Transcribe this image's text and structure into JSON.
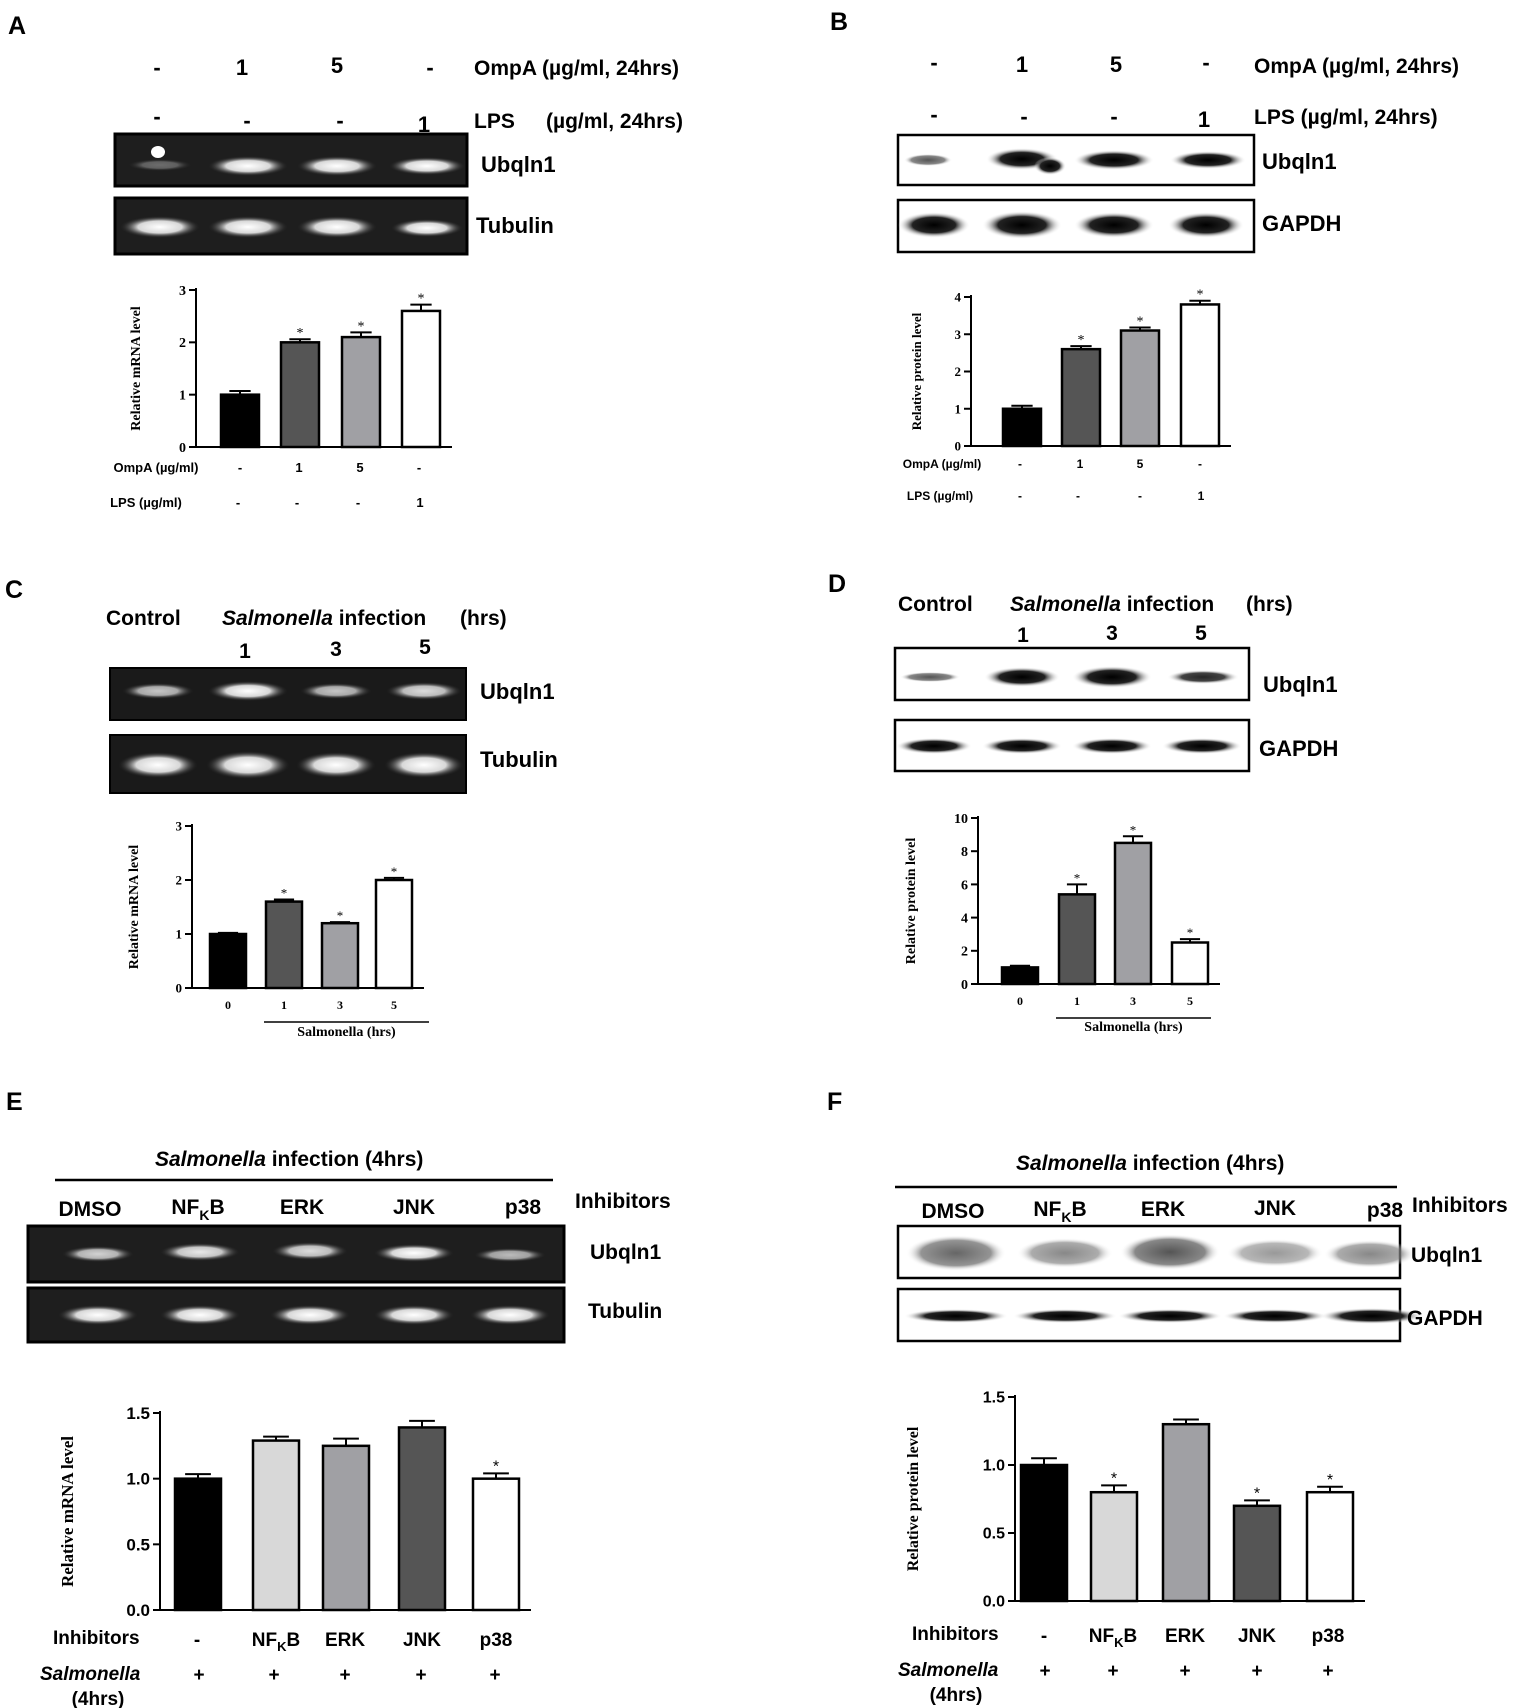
{
  "panels": {
    "A": {
      "letter": "A",
      "row1": [
        "-",
        "1",
        "5",
        "-"
      ],
      "row1_label": "OmpA (µg/ml, 24hrs)",
      "row2": [
        "-",
        "-",
        "-",
        "1"
      ],
      "row2_label": "LPS",
      "row2_label_units": "(µg/ml, 24hrs)",
      "blot_labels": [
        "Ubqln1",
        "Tubulin"
      ],
      "axis_rows": [
        {
          "label": "OmpA (µg/ml)",
          "values": [
            "-",
            "1",
            "5",
            "-"
          ]
        },
        {
          "label": "LPS (µg/ml)",
          "values": [
            "-",
            "-",
            "-",
            "1"
          ]
        }
      ]
    },
    "B": {
      "letter": "B",
      "row1": [
        "-",
        "1",
        "5",
        "-"
      ],
      "row1_label": "OmpA (µg/ml, 24hrs)",
      "row2": [
        "-",
        "-",
        "-",
        "1"
      ],
      "row2_label": "LPS (µg/ml, 24hrs)",
      "blot_labels": [
        "Ubqln1",
        "GAPDH"
      ],
      "axis_rows": [
        {
          "label": "OmpA (µg/ml)",
          "values": [
            "-",
            "1",
            "5",
            "-"
          ]
        },
        {
          "label": "LPS (µg/ml)",
          "values": [
            "-",
            "-",
            "-",
            "1"
          ]
        }
      ]
    },
    "C": {
      "letter": "C",
      "control": "Control",
      "infection_italic": "Salmonella",
      "infection_rest": " infection",
      "hrs": "(hrs)",
      "times": [
        "1",
        "3",
        "5"
      ],
      "blot_labels": [
        "Ubqln1",
        "Tubulin"
      ]
    },
    "D": {
      "letter": "D",
      "control": "Control",
      "infection_italic": "Salmonella",
      "infection_rest": " infection",
      "hrs": "(hrs)",
      "times": [
        "1",
        "3",
        "5"
      ],
      "blot_labels": [
        "Ubqln1",
        "GAPDH"
      ]
    },
    "E": {
      "letter": "E",
      "header_italic": "Salmonella",
      "header_rest": " infection (4hrs)",
      "lanes": [
        "DMSO",
        "NF",
        "ERK",
        "JNK",
        "p38"
      ],
      "nfkb_sub": "K",
      "nfkb_tail": "B",
      "inhibitors": "Inhibitors",
      "blot_labels": [
        "Ubqln1",
        "Tubulin"
      ],
      "row_inhib_label": "Inhibitors",
      "row_inhib": [
        "-",
        "NF",
        "ERK",
        "JNK",
        "p38"
      ],
      "row_salm_label_1": "Salmonella",
      "row_salm_label_2": "(4hrs)",
      "row_salm": [
        "+",
        "+",
        "+",
        "+",
        "+"
      ]
    },
    "F": {
      "letter": "F",
      "header_italic": "Salmonella",
      "header_rest": " infection (4hrs)",
      "lanes": [
        "DMSO",
        "NF",
        "ERK",
        "JNK",
        "p38"
      ],
      "nfkb_sub": "K",
      "nfkb_tail": "B",
      "inhibitors": "Inhibitors",
      "blot_labels": [
        "Ubqln1",
        "GAPDH"
      ],
      "row_inhib_label": "Inhibitors",
      "row_inhib": [
        "-",
        "NF",
        "ERK",
        "JNK",
        "p38"
      ],
      "row_salm_label_1": "Salmonella",
      "row_salm_label_2": "(4hrs)",
      "row_salm": [
        "+",
        "+",
        "+",
        "+",
        "+"
      ]
    }
  },
  "chart_data": [
    {
      "id": "A",
      "type": "bar",
      "ylabel": "Relative mRNA level",
      "xlabel": "",
      "ylim": [
        0,
        3
      ],
      "yticks": [
        "0",
        "1",
        "2",
        "3"
      ],
      "categories": [
        "-/-",
        "1/-",
        "5/-",
        "-/1"
      ],
      "values": [
        1.0,
        2.0,
        2.1,
        2.6
      ],
      "errors": [
        0.07,
        0.06,
        0.09,
        0.12
      ],
      "significance": [
        "",
        "*",
        "*",
        "*"
      ],
      "colors": [
        "#000000",
        "#555555",
        "#a0a0a4",
        "#ffffff"
      ]
    },
    {
      "id": "B",
      "type": "bar",
      "ylabel": "Relative protein level",
      "xlabel": "",
      "ylim": [
        0,
        4
      ],
      "yticks": [
        "0",
        "1",
        "2",
        "3",
        "4"
      ],
      "categories": [
        "-/-",
        "1/-",
        "5/-",
        "-/1"
      ],
      "values": [
        1.0,
        2.6,
        3.1,
        3.8
      ],
      "errors": [
        0.08,
        0.08,
        0.08,
        0.1
      ],
      "significance": [
        "",
        "*",
        "*",
        "*"
      ],
      "colors": [
        "#000000",
        "#555555",
        "#a0a0a4",
        "#ffffff"
      ]
    },
    {
      "id": "C",
      "type": "bar",
      "ylabel": "Relative mRNA level",
      "xlabel": "Salmonella (hrs)",
      "ylim": [
        0,
        3
      ],
      "yticks": [
        "0",
        "1",
        "2",
        "3"
      ],
      "categories": [
        "0",
        "1",
        "3",
        "5"
      ],
      "values": [
        1.0,
        1.6,
        1.2,
        2.0
      ],
      "errors": [
        0.02,
        0.04,
        0.02,
        0.04
      ],
      "significance": [
        "",
        "*",
        "*",
        "*"
      ],
      "colors": [
        "#000000",
        "#555555",
        "#a0a0a4",
        "#ffffff"
      ]
    },
    {
      "id": "D",
      "type": "bar",
      "ylabel": "Relative protein level",
      "xlabel": "Salmonella (hrs)",
      "ylim": [
        0,
        10
      ],
      "yticks": [
        "0",
        "2",
        "4",
        "6",
        "8",
        "10"
      ],
      "categories": [
        "0",
        "1",
        "3",
        "5"
      ],
      "values": [
        1.0,
        5.4,
        8.5,
        2.5
      ],
      "errors": [
        0.1,
        0.6,
        0.4,
        0.2
      ],
      "significance": [
        "",
        "*",
        "*",
        "*"
      ],
      "colors": [
        "#000000",
        "#555555",
        "#a0a0a4",
        "#ffffff"
      ]
    },
    {
      "id": "E",
      "type": "bar",
      "ylabel": "Relative mRNA level",
      "xlabel": "",
      "ylim": [
        0,
        1.5
      ],
      "yticks": [
        "0.0",
        "0.5",
        "1.0",
        "1.5"
      ],
      "categories": [
        "-",
        "NFKB",
        "ERK",
        "JNK",
        "p38"
      ],
      "values": [
        1.0,
        1.29,
        1.25,
        1.39,
        1.0
      ],
      "errors": [
        0.035,
        0.03,
        0.055,
        0.05,
        0.04
      ],
      "significance": [
        "",
        "",
        "",
        "",
        "*"
      ],
      "colors": [
        "#000000",
        "#d8d8d8",
        "#a0a0a4",
        "#555555",
        "#ffffff"
      ]
    },
    {
      "id": "F",
      "type": "bar",
      "ylabel": "Relative protein level",
      "xlabel": "",
      "ylim": [
        0,
        1.5
      ],
      "yticks": [
        "0.0",
        "0.5",
        "1.0",
        "1.5"
      ],
      "categories": [
        "-",
        "NFKB",
        "ERK",
        "JNK",
        "p38"
      ],
      "values": [
        1.0,
        0.8,
        1.3,
        0.7,
        0.8
      ],
      "errors": [
        0.05,
        0.05,
        0.035,
        0.04,
        0.04
      ],
      "significance": [
        "",
        "*",
        "",
        "*",
        "*"
      ],
      "colors": [
        "#000000",
        "#d8d8d8",
        "#a0a0a4",
        "#555555",
        "#ffffff"
      ]
    }
  ]
}
